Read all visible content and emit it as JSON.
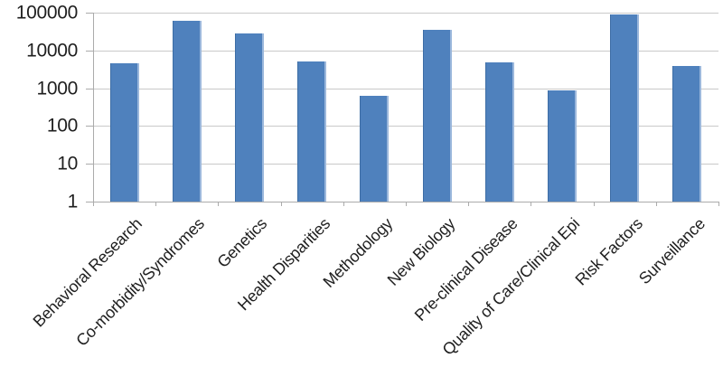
{
  "chart_data": {
    "type": "bar",
    "title": "",
    "xlabel": "",
    "ylabel": "",
    "categories": [
      "Behavioral Research",
      "Co-morbidity/Syndromes",
      "Genetics",
      "Health Disparities",
      "Methodology",
      "New Biology",
      "Pre-clinical Disease",
      "Quality of Care/Clinical Epi",
      "Risk Factors",
      "Surveillance"
    ],
    "values": [
      4500,
      60000,
      28000,
      5000,
      630,
      36000,
      4800,
      900,
      90000,
      3900
    ],
    "y_scale": "log10",
    "ylim": [
      1,
      100000
    ],
    "y_tick_labels_top_to_bottom": [
      "100000",
      "10000",
      "1000",
      "100",
      "10",
      "1"
    ],
    "grid": "horizontal",
    "legend": "none",
    "x_tick_rotation_deg": 45
  },
  "colors": {
    "bar_fill": "#4F81BD",
    "bar_edge_dark": "#3D6DA5",
    "bar_edge_light": "#9CB8DC",
    "gridline": "#C9C9C9",
    "axis": "#ABABAB",
    "text": "#1F1F1F",
    "background": "#FFFFFF"
  }
}
